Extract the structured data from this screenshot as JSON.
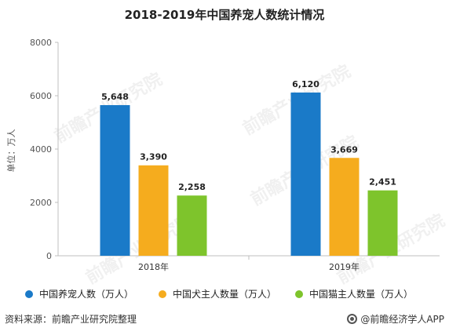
{
  "chart_data": {
    "type": "bar",
    "title": "2018-2019年中国养宠人数统计情况",
    "ylabel": "单位：万人",
    "categories": [
      "2018年",
      "2019年"
    ],
    "ylim": [
      0,
      8000
    ],
    "yticks": [
      0,
      2000,
      4000,
      6000,
      8000
    ],
    "grid": false,
    "legend_position": "bottom",
    "series": [
      {
        "name": "中国养宠人数（万人）",
        "values": [
          5648,
          6120
        ],
        "labels": [
          "5,648",
          "6,120"
        ],
        "color": "#1a7ac8"
      },
      {
        "name": "中国犬主人数量（万人）",
        "values": [
          3390,
          3669
        ],
        "labels": [
          "3,390",
          "3,669"
        ],
        "color": "#f5ac1e"
      },
      {
        "name": "中国猫主人数量（万人）",
        "values": [
          2258,
          2451
        ],
        "labels": [
          "2,258",
          "2,451"
        ],
        "color": "#7ec42c"
      }
    ]
  },
  "footer": {
    "source": "资料来源：前瞻产业研究院整理",
    "brand": "@前瞻经济学人APP"
  },
  "watermark": "前瞻产业研究院"
}
